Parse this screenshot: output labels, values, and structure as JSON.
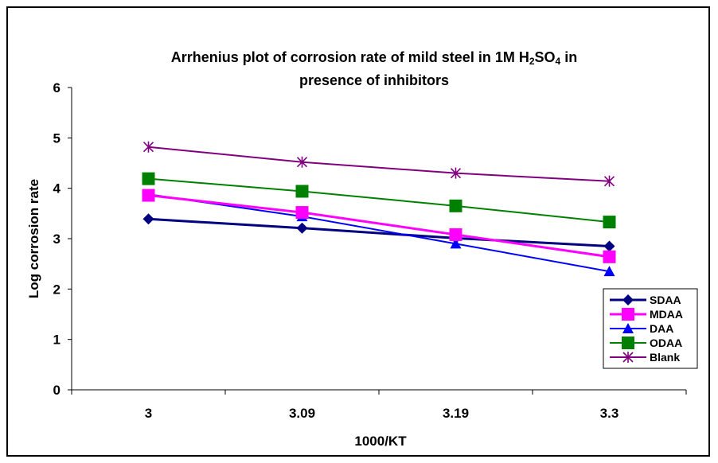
{
  "chart_data": {
    "type": "line",
    "title_line1_pre": "Arrhenius plot of corrosion rate of mild steel in 1M H",
    "title_sub1": "2",
    "title_mid": "SO",
    "title_sub2": "4",
    "title_line1_post": " in",
    "title_line2": "presence of inhibitors",
    "xlabel": "1000/KT",
    "ylabel": "Log corrosion rate",
    "categories": [
      "3",
      "3.09",
      "3.19",
      "3.3"
    ],
    "ylim": [
      0,
      6
    ],
    "yticks": [
      "0",
      "1",
      "2",
      "3",
      "4",
      "5",
      "6"
    ],
    "grid": false,
    "legend_position": "right",
    "series": [
      {
        "name": "SDAA",
        "values": [
          3.39,
          3.21,
          3.01,
          2.85
        ],
        "color": "#000080",
        "marker": "diamond"
      },
      {
        "name": "MDAA",
        "values": [
          3.86,
          3.52,
          3.08,
          2.64
        ],
        "color": "#ff00ff",
        "marker": "square"
      },
      {
        "name": "DAA",
        "values": [
          3.88,
          3.44,
          2.9,
          2.35
        ],
        "color": "#0000ff",
        "marker": "triangle"
      },
      {
        "name": "ODAA",
        "values": [
          4.19,
          3.94,
          3.65,
          3.33
        ],
        "color": "#008000",
        "marker": "square"
      },
      {
        "name": "Blank",
        "values": [
          4.82,
          4.52,
          4.3,
          4.14
        ],
        "color": "#800080",
        "marker": "star"
      }
    ]
  }
}
